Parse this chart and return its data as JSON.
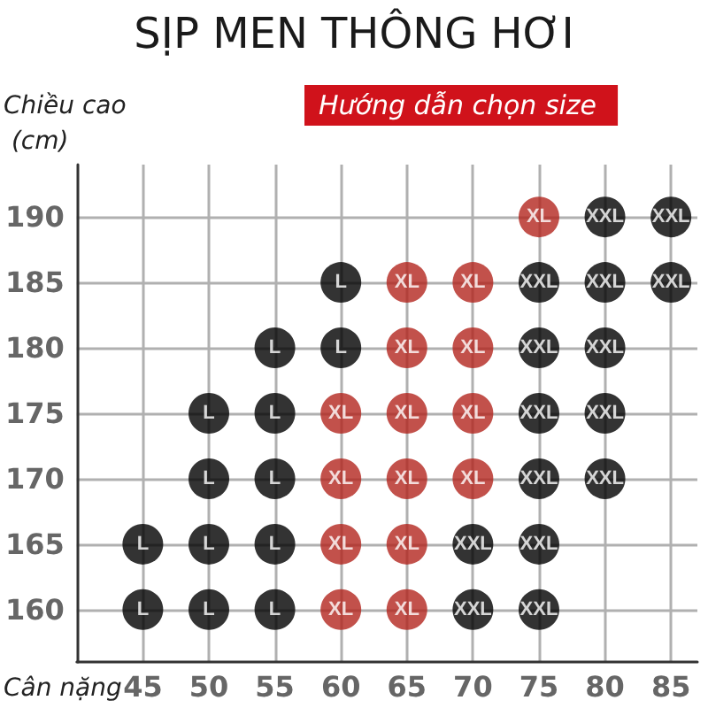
{
  "chart_data": {
    "type": "scatter",
    "title": "SỊP MEN THÔNG HƠI",
    "subtitle": "Hướng dẫn chọn size",
    "xlabel": "Cân nặng",
    "ylabel": "Chiều cao (cm)",
    "xlim": [
      40,
      87
    ],
    "xticks": [
      45,
      50,
      55,
      60,
      65,
      70,
      75,
      80,
      85
    ],
    "ylim": [
      156,
      194
    ],
    "yticks": [
      160,
      165,
      170,
      175,
      180,
      185,
      190
    ],
    "grid": true,
    "marker": "circle",
    "series": [
      {
        "color": "#000000",
        "x": [
          60,
          55,
          60,
          50,
          55,
          50,
          55,
          45,
          50,
          55,
          45,
          50,
          55
        ],
        "values": [
          185,
          180,
          180,
          175,
          175,
          170,
          170,
          165,
          165,
          165,
          160,
          160,
          160
        ],
        "value_labels": [
          "L",
          "L",
          "L",
          "L",
          "L",
          "L",
          "L",
          "L",
          "L",
          "L",
          "L",
          "L",
          "L"
        ]
      },
      {
        "color": "#b3261e",
        "x": [
          75,
          65,
          70,
          65,
          70,
          60,
          65,
          70,
          60,
          65,
          70,
          60,
          65,
          60,
          65
        ],
        "values": [
          190,
          185,
          185,
          180,
          180,
          175,
          175,
          175,
          170,
          170,
          170,
          165,
          165,
          160,
          160
        ],
        "value_labels": [
          "XL",
          "XL",
          "XL",
          "XL",
          "XL",
          "XL",
          "XL",
          "XL",
          "XL",
          "XL",
          "XL",
          "XL",
          "XL",
          "XL",
          "XL"
        ]
      },
      {
        "color": "#000000",
        "x": [
          80,
          85,
          75,
          80,
          85,
          75,
          80,
          75,
          80,
          75,
          80,
          70,
          75,
          70,
          75
        ],
        "values": [
          190,
          190,
          185,
          185,
          185,
          180,
          180,
          175,
          175,
          170,
          170,
          165,
          165,
          160,
          160
        ],
        "value_labels": [
          "XXL",
          "XXL",
          "XXL",
          "XXL",
          "XXL",
          "XXL",
          "XXL",
          "XXL",
          "XXL",
          "XXL",
          "XXL",
          "XXL",
          "XXL",
          "XXL",
          "XXL"
        ]
      }
    ]
  }
}
